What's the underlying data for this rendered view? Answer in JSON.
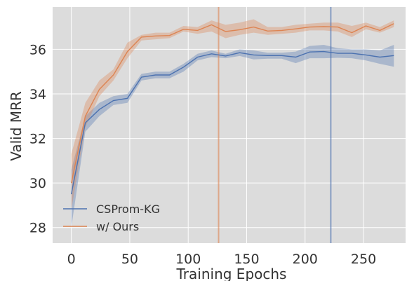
{
  "chart_data": {
    "type": "line",
    "xlabel": "Training Epochs",
    "ylabel": "Valid MRR",
    "xlim": [
      -16,
      286
    ],
    "ylim": [
      27.3,
      37.9
    ],
    "xticks": [
      0,
      50,
      100,
      150,
      200,
      250
    ],
    "yticks": [
      28,
      30,
      32,
      34,
      36
    ],
    "grid": true,
    "background": "#dcdcdc",
    "legend_position": "lower-left",
    "series": [
      {
        "name": "CSProm-KG",
        "color": "#4c72b0",
        "x": [
          0,
          12,
          24,
          36,
          48,
          60,
          72,
          84,
          96,
          108,
          120,
          132,
          144,
          156,
          168,
          180,
          192,
          204,
          216,
          228,
          240,
          252,
          264,
          276
        ],
        "y": [
          29.5,
          32.7,
          33.3,
          33.7,
          33.8,
          34.75,
          34.85,
          34.85,
          35.2,
          35.65,
          35.8,
          35.7,
          35.85,
          35.75,
          35.72,
          35.72,
          35.65,
          35.88,
          35.9,
          35.82,
          35.82,
          35.75,
          35.65,
          35.72
        ],
        "y_low": [
          28.0,
          32.3,
          33.0,
          33.5,
          33.6,
          34.6,
          34.7,
          34.7,
          35.0,
          35.5,
          35.65,
          35.6,
          35.7,
          35.55,
          35.58,
          35.58,
          35.38,
          35.6,
          35.6,
          35.62,
          35.6,
          35.5,
          35.35,
          35.22
        ],
        "y_high": [
          30.6,
          33.0,
          33.6,
          33.9,
          34.0,
          34.9,
          35.0,
          35.0,
          35.35,
          35.8,
          35.95,
          35.8,
          36.0,
          35.95,
          35.85,
          35.85,
          35.9,
          36.15,
          36.2,
          36.05,
          36.0,
          36.0,
          35.95,
          36.2
        ]
      },
      {
        "name": "w/ Ours",
        "color": "#dd8452",
        "x": [
          0,
          12,
          24,
          36,
          48,
          60,
          72,
          84,
          96,
          108,
          120,
          132,
          144,
          156,
          168,
          180,
          192,
          204,
          216,
          228,
          240,
          252,
          264,
          276
        ],
        "y": [
          30.0,
          33.0,
          34.2,
          34.85,
          35.9,
          36.55,
          36.6,
          36.62,
          36.9,
          36.85,
          37.1,
          36.8,
          36.88,
          37.0,
          36.82,
          36.85,
          36.92,
          37.0,
          37.02,
          37.0,
          36.75,
          37.05,
          36.85,
          37.15
        ],
        "y_low": [
          28.8,
          32.5,
          33.9,
          34.6,
          35.6,
          36.4,
          36.45,
          36.5,
          36.8,
          36.7,
          36.8,
          36.5,
          36.65,
          36.75,
          36.65,
          36.7,
          36.75,
          36.85,
          36.85,
          36.8,
          36.55,
          36.9,
          36.75,
          37.0
        ],
        "y_high": [
          31.3,
          33.6,
          34.6,
          35.1,
          36.3,
          36.65,
          36.75,
          36.75,
          37.05,
          37.0,
          37.3,
          37.1,
          37.2,
          37.35,
          37.0,
          37.0,
          37.1,
          37.15,
          37.2,
          37.2,
          37.05,
          37.2,
          37.0,
          37.3
        ]
      }
    ],
    "vlines": [
      {
        "x": 126,
        "color": "#dd8452"
      },
      {
        "x": 222,
        "color": "#4c72b0"
      }
    ]
  }
}
